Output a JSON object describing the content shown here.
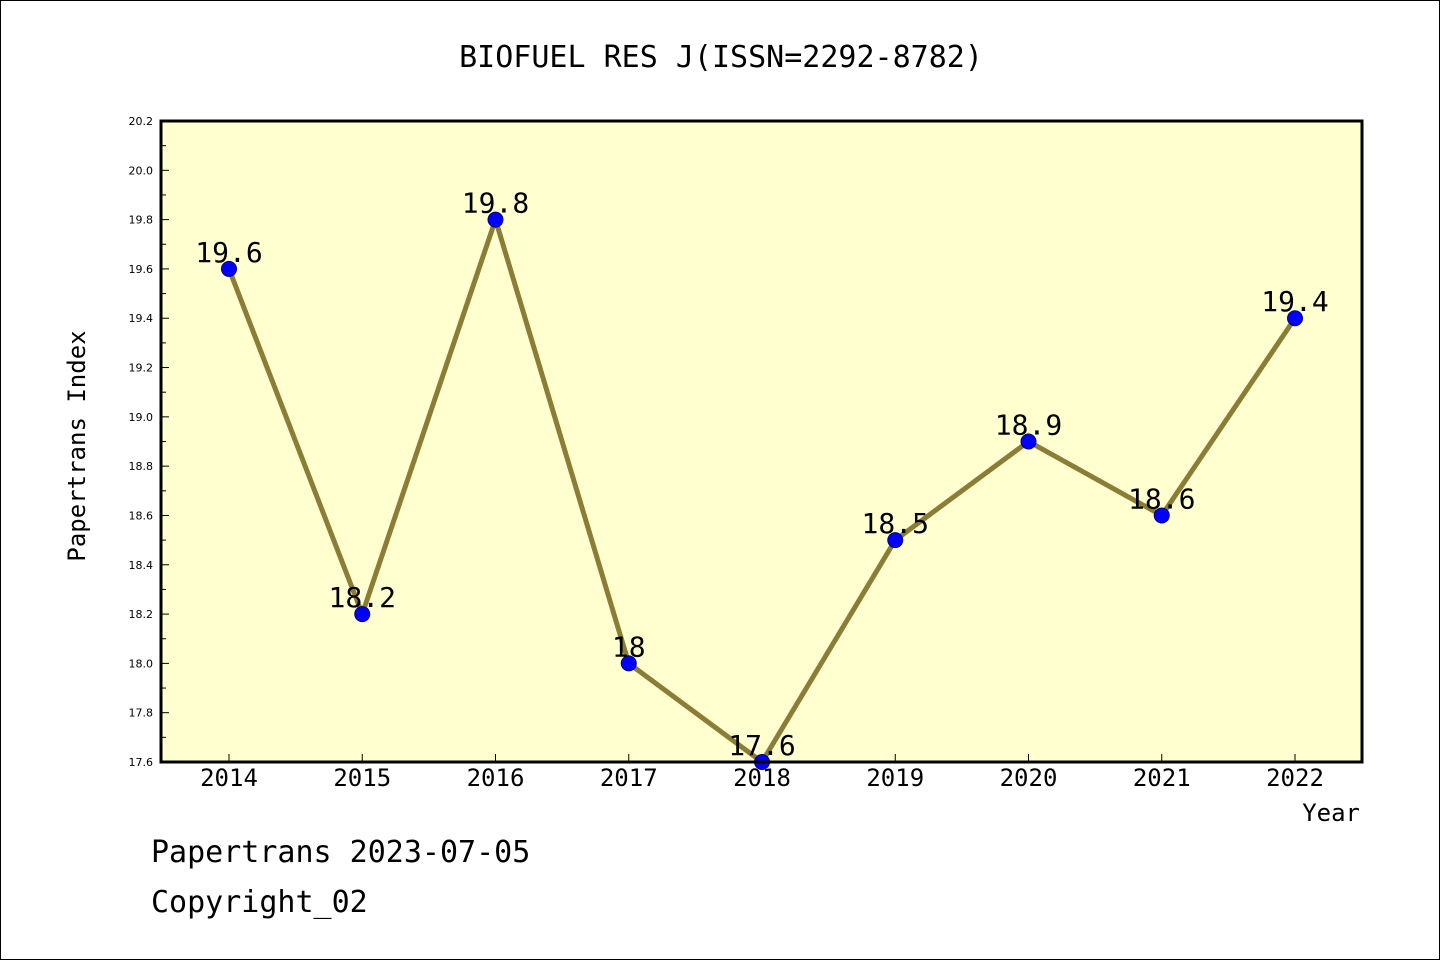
{
  "chart_data": {
    "type": "line",
    "title": "BIOFUEL RES J(ISSN=2292-8782)",
    "xlabel": "Year",
    "ylabel": "Papertrans Index",
    "categories": [
      "2014",
      "2015",
      "2016",
      "2017",
      "2018",
      "2019",
      "2020",
      "2021",
      "2022"
    ],
    "series": [
      {
        "values": [
          19.6,
          18.2,
          19.8,
          18.0,
          17.6,
          18.5,
          18.9,
          18.6,
          19.4
        ],
        "data_labels": [
          "19.6",
          "18.2",
          "19.8",
          "18",
          "17.6",
          "18.5",
          "18.9",
          "18.6",
          "19.4"
        ]
      }
    ],
    "ylim": [
      17.6,
      20.2
    ],
    "yticks": [
      "17.6",
      "17.8",
      "18.0",
      "18.2",
      "18.4",
      "18.6",
      "18.8",
      "19.0",
      "19.2",
      "19.4",
      "19.6",
      "19.8",
      "20.0",
      "20.2"
    ],
    "grid": false,
    "colors": {
      "plot_background": "#ffffd0",
      "line": "#8b7d36",
      "marker": "#0000ff",
      "marker_edge": "#000080",
      "frame": "#000000"
    }
  },
  "footer": {
    "line1": "Papertrans 2023-07-05",
    "line2": "Copyright_02"
  }
}
